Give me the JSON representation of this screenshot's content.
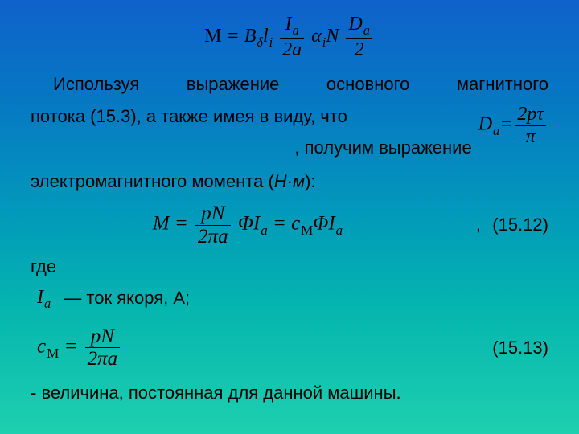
{
  "eq_top_html": "<span class='upright'>M</span>&nbsp;=&nbsp;<span>B</span><span class='sub'>δ</span><span>l</span><span class='sub'>i</span>&nbsp;<span class='frac'><span><i>I<span class='sub'>a</span></i></span><span class='den'>2<i>a</i></span></span>&nbsp;<i>α</i><span class='sub'>i</span><i>N</i>&nbsp;<span class='frac'><span><i>D<span class='sub'>a</span></i></span><span class='den'>2</span></span>",
  "p1_line1": "Используя выражение основного магнитного",
  "p1_line2": "потока (15.3), а также имея в виду, что",
  "eq_da_html": "<i>D</i><span class='sub'>a</span>=<span class='frac'><span>2<i>pτ</i></span><span class='den'><i>π</i></span></span>",
  "p1_line3": ", получим выражение",
  "p1_line4": "электромагнитного момента (",
  "hm_unit": "Н·м",
  "p1_close": "):",
  "eq_main_html": "<i>M</i>&nbsp;=&nbsp;<span class='frac'><span><i>pN</i></span><span class='den'>2<i>πa</i></span></span>&nbsp;<i>ΦI</i><span class='sub'>a</span>&nbsp;=&nbsp;<i>c</i><span class='sub upright'>M</span><i>ΦI</i><span class='sub'>a</span>",
  "eq_main_num": "(15.12)",
  "where": "где",
  "ia_html": "<i>I</i><span class='sub'>a</span>",
  "ia_text": "— ток якоря, А;",
  "eq_cm_html": "<i>c</i><span class='sub upright'>M</span>&nbsp;=&nbsp;<span class='frac'><span><i>pN</i></span><span class='den'>2<i>πa</i></span></span>",
  "eq_cm_num": "(15.13)",
  "footer": "- величина, постоянная для данной машины."
}
